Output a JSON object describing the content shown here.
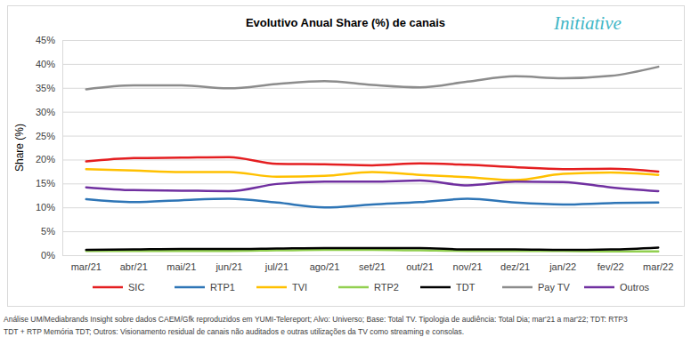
{
  "chart_data": {
    "type": "line",
    "title": "Evolutivo Anual Share (%) de canais",
    "logo": "Initiative",
    "y_label": "Share (%)",
    "categories": [
      "mar/21",
      "abr/21",
      "mai/21",
      "jun/21",
      "jul/21",
      "ago/21",
      "set/21",
      "out/21",
      "nov/21",
      "dez/21",
      "jan/22",
      "fev/22",
      "mar/22"
    ],
    "series": [
      {
        "name": "SIC",
        "color": "#e41e20",
        "line_style": "smooth",
        "values": [
          19.6,
          20.3,
          20.4,
          20.5,
          19.1,
          19.0,
          18.8,
          19.2,
          18.9,
          18.4,
          18.0,
          18.1,
          17.5
        ]
      },
      {
        "name": "RTP1",
        "color": "#2e75b6",
        "line_style": "smooth",
        "values": [
          11.7,
          11.1,
          11.5,
          11.8,
          11.0,
          10.0,
          10.6,
          11.1,
          11.8,
          11.0,
          10.6,
          10.9,
          11.0
        ]
      },
      {
        "name": "TVI",
        "color": "#ffc000",
        "line_style": "smooth",
        "values": [
          18.0,
          17.7,
          17.4,
          17.4,
          16.4,
          16.6,
          17.4,
          16.8,
          16.3,
          15.7,
          17.0,
          17.3,
          16.8
        ]
      },
      {
        "name": "RTP2",
        "color": "#92d050",
        "line_style": "smooth",
        "values": [
          0.9,
          0.9,
          0.9,
          0.9,
          1.0,
          1.1,
          1.1,
          1.0,
          0.9,
          0.9,
          0.9,
          0.8,
          0.8
        ]
      },
      {
        "name": "TDT",
        "color": "#000000",
        "line_style": "smooth",
        "values": [
          1.1,
          1.2,
          1.3,
          1.3,
          1.4,
          1.5,
          1.5,
          1.5,
          1.2,
          1.2,
          1.1,
          1.2,
          1.6
        ]
      },
      {
        "name": "Pay TV",
        "color": "#8c8c8c",
        "line_style": "smooth",
        "values": [
          34.7,
          35.5,
          35.5,
          34.9,
          35.8,
          36.4,
          35.6,
          35.1,
          36.3,
          37.4,
          37.0,
          37.5,
          39.4
        ]
      },
      {
        "name": "Outros",
        "color": "#7030a0",
        "line_style": "smooth",
        "values": [
          14.2,
          13.6,
          13.5,
          13.4,
          14.9,
          15.4,
          15.4,
          15.6,
          14.6,
          15.4,
          15.3,
          14.2,
          13.4
        ]
      }
    ],
    "ylim": [
      0,
      45
    ],
    "yticks": [
      {
        "value": 0,
        "label": "0%"
      },
      {
        "value": 5,
        "label": "5%"
      },
      {
        "value": 10,
        "label": "10%"
      },
      {
        "value": 15,
        "label": "15%"
      },
      {
        "value": 20,
        "label": "20%"
      },
      {
        "value": 25,
        "label": "25%"
      },
      {
        "value": 30,
        "label": "30%"
      },
      {
        "value": 35,
        "label": "35%"
      },
      {
        "value": 40,
        "label": "40%"
      },
      {
        "value": 45,
        "label": "45%"
      }
    ],
    "grid": true,
    "legend": "bottom",
    "footnote": [
      "Análise UM/Mediabrands Insight sobre dados CAEM/Gfk reproduzidos em YUMI-Telereport; Alvo: Universo; Base: Total TV. Tipologia de audiência: Total Dia; mar'21 a mar'22; TDT: RTP3",
      "TDT + RTP Memória TDT; Outros: Visionamento residual de canais não auditados e outras utilizações da TV como streaming e consolas."
    ]
  }
}
